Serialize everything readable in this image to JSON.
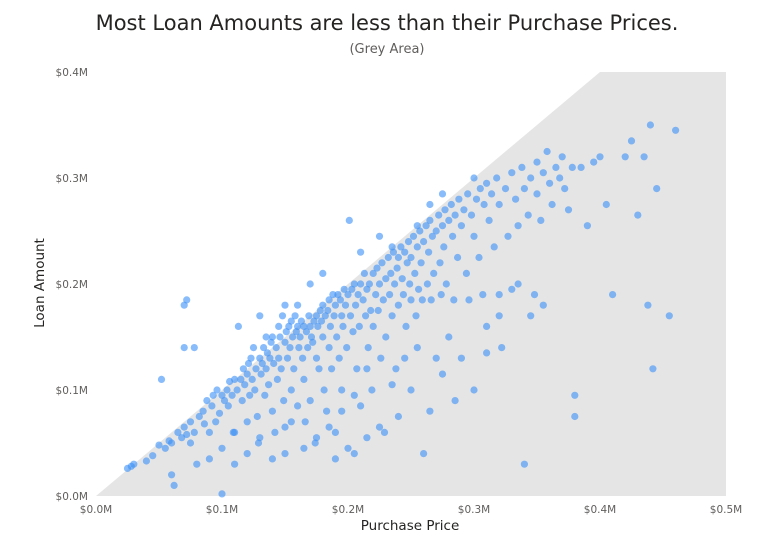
{
  "chart_data": {
    "type": "scatter",
    "title": "Most Loan Amounts are less than their Purchase Prices.",
    "subtitle": "(Grey Area)",
    "xlabel": "Purchase Price",
    "ylabel": "Loan Amount",
    "xlim": [
      0,
      0.5
    ],
    "ylim": [
      0,
      0.4
    ],
    "x_unit": "$M",
    "y_unit": "$M",
    "x_ticks": [
      "$0.0M",
      "$0.1M",
      "$0.2M",
      "$0.3M",
      "$0.4M",
      "$0.5M"
    ],
    "y_ticks": [
      "$0.0M",
      "$0.1M",
      "$0.2M",
      "$0.3M",
      "$0.4M"
    ],
    "x_tick_values": [
      0,
      0.1,
      0.2,
      0.3,
      0.4,
      0.5
    ],
    "y_tick_values": [
      0,
      0.1,
      0.2,
      0.3,
      0.4
    ],
    "grid": false,
    "legend": "none",
    "shaded_region": {
      "description_line": "y = x",
      "color": "#e5e5e5"
    },
    "point_color": "#3a8ff7",
    "points": [
      [
        0.025,
        0.026
      ],
      [
        0.028,
        0.028
      ],
      [
        0.03,
        0.03
      ],
      [
        0.04,
        0.033
      ],
      [
        0.045,
        0.038
      ],
      [
        0.05,
        0.048
      ],
      [
        0.052,
        0.11
      ],
      [
        0.055,
        0.045
      ],
      [
        0.058,
        0.052
      ],
      [
        0.06,
        0.05
      ],
      [
        0.06,
        0.02
      ],
      [
        0.062,
        0.01
      ],
      [
        0.065,
        0.06
      ],
      [
        0.068,
        0.055
      ],
      [
        0.07,
        0.065
      ],
      [
        0.07,
        0.14
      ],
      [
        0.072,
        0.058
      ],
      [
        0.075,
        0.07
      ],
      [
        0.075,
        0.05
      ],
      [
        0.078,
        0.06
      ],
      [
        0.07,
        0.18
      ],
      [
        0.072,
        0.185
      ],
      [
        0.078,
        0.14
      ],
      [
        0.08,
        0.03
      ],
      [
        0.082,
        0.075
      ],
      [
        0.085,
        0.08
      ],
      [
        0.086,
        0.068
      ],
      [
        0.088,
        0.09
      ],
      [
        0.09,
        0.06
      ],
      [
        0.09,
        0.035
      ],
      [
        0.092,
        0.085
      ],
      [
        0.093,
        0.095
      ],
      [
        0.095,
        0.07
      ],
      [
        0.096,
        0.1
      ],
      [
        0.098,
        0.078
      ],
      [
        0.1,
        0.002
      ],
      [
        0.1,
        0.045
      ],
      [
        0.1,
        0.095
      ],
      [
        0.102,
        0.09
      ],
      [
        0.104,
        0.1
      ],
      [
        0.105,
        0.085
      ],
      [
        0.106,
        0.108
      ],
      [
        0.108,
        0.095
      ],
      [
        0.109,
        0.06
      ],
      [
        0.11,
        0.11
      ],
      [
        0.11,
        0.03
      ],
      [
        0.112,
        0.1
      ],
      [
        0.113,
        0.16
      ],
      [
        0.115,
        0.11
      ],
      [
        0.116,
        0.09
      ],
      [
        0.117,
        0.12
      ],
      [
        0.118,
        0.105
      ],
      [
        0.12,
        0.115
      ],
      [
        0.12,
        0.07
      ],
      [
        0.121,
        0.125
      ],
      [
        0.122,
        0.095
      ],
      [
        0.123,
        0.13
      ],
      [
        0.124,
        0.11
      ],
      [
        0.125,
        0.14
      ],
      [
        0.126,
        0.1
      ],
      [
        0.127,
        0.12
      ],
      [
        0.128,
        0.075
      ],
      [
        0.129,
        0.05
      ],
      [
        0.13,
        0.13
      ],
      [
        0.13,
        0.17
      ],
      [
        0.131,
        0.115
      ],
      [
        0.132,
        0.125
      ],
      [
        0.133,
        0.14
      ],
      [
        0.134,
        0.095
      ],
      [
        0.135,
        0.12
      ],
      [
        0.135,
        0.15
      ],
      [
        0.136,
        0.135
      ],
      [
        0.137,
        0.105
      ],
      [
        0.138,
        0.13
      ],
      [
        0.139,
        0.145
      ],
      [
        0.14,
        0.15
      ],
      [
        0.14,
        0.08
      ],
      [
        0.141,
        0.125
      ],
      [
        0.142,
        0.06
      ],
      [
        0.143,
        0.14
      ],
      [
        0.144,
        0.11
      ],
      [
        0.145,
        0.16
      ],
      [
        0.145,
        0.13
      ],
      [
        0.146,
        0.15
      ],
      [
        0.147,
        0.12
      ],
      [
        0.148,
        0.17
      ],
      [
        0.149,
        0.09
      ],
      [
        0.15,
        0.145
      ],
      [
        0.15,
        0.04
      ],
      [
        0.151,
        0.155
      ],
      [
        0.152,
        0.13
      ],
      [
        0.153,
        0.16
      ],
      [
        0.154,
        0.14
      ],
      [
        0.155,
        0.165
      ],
      [
        0.155,
        0.1
      ],
      [
        0.156,
        0.15
      ],
      [
        0.157,
        0.12
      ],
      [
        0.158,
        0.17
      ],
      [
        0.159,
        0.155
      ],
      [
        0.16,
        0.16
      ],
      [
        0.16,
        0.085
      ],
      [
        0.161,
        0.14
      ],
      [
        0.162,
        0.15
      ],
      [
        0.163,
        0.165
      ],
      [
        0.164,
        0.13
      ],
      [
        0.165,
        0.16
      ],
      [
        0.165,
        0.11
      ],
      [
        0.166,
        0.07
      ],
      [
        0.167,
        0.155
      ],
      [
        0.168,
        0.14
      ],
      [
        0.169,
        0.17
      ],
      [
        0.17,
        0.16
      ],
      [
        0.17,
        0.09
      ],
      [
        0.171,
        0.15
      ],
      [
        0.172,
        0.145
      ],
      [
        0.173,
        0.165
      ],
      [
        0.174,
        0.05
      ],
      [
        0.175,
        0.17
      ],
      [
        0.175,
        0.13
      ],
      [
        0.176,
        0.16
      ],
      [
        0.177,
        0.12
      ],
      [
        0.178,
        0.175
      ],
      [
        0.179,
        0.165
      ],
      [
        0.18,
        0.18
      ],
      [
        0.18,
        0.15
      ],
      [
        0.181,
        0.1
      ],
      [
        0.182,
        0.17
      ],
      [
        0.183,
        0.08
      ],
      [
        0.184,
        0.175
      ],
      [
        0.185,
        0.185
      ],
      [
        0.185,
        0.14
      ],
      [
        0.186,
        0.16
      ],
      [
        0.187,
        0.12
      ],
      [
        0.188,
        0.19
      ],
      [
        0.189,
        0.17
      ],
      [
        0.19,
        0.18
      ],
      [
        0.19,
        0.06
      ],
      [
        0.191,
        0.15
      ],
      [
        0.192,
        0.19
      ],
      [
        0.193,
        0.13
      ],
      [
        0.194,
        0.185
      ],
      [
        0.195,
        0.17
      ],
      [
        0.195,
        0.1
      ],
      [
        0.196,
        0.16
      ],
      [
        0.197,
        0.195
      ],
      [
        0.198,
        0.18
      ],
      [
        0.199,
        0.14
      ],
      [
        0.2,
        0.19
      ],
      [
        0.2,
        0.045
      ],
      [
        0.201,
        0.26
      ],
      [
        0.202,
        0.17
      ],
      [
        0.203,
        0.195
      ],
      [
        0.204,
        0.155
      ],
      [
        0.205,
        0.2
      ],
      [
        0.206,
        0.18
      ],
      [
        0.207,
        0.12
      ],
      [
        0.208,
        0.19
      ],
      [
        0.209,
        0.16
      ],
      [
        0.21,
        0.2
      ],
      [
        0.21,
        0.085
      ],
      [
        0.212,
        0.185
      ],
      [
        0.213,
        0.21
      ],
      [
        0.214,
        0.17
      ],
      [
        0.215,
        0.195
      ],
      [
        0.216,
        0.14
      ],
      [
        0.217,
        0.2
      ],
      [
        0.218,
        0.175
      ],
      [
        0.219,
        0.1
      ],
      [
        0.22,
        0.21
      ],
      [
        0.22,
        0.16
      ],
      [
        0.222,
        0.19
      ],
      [
        0.223,
        0.215
      ],
      [
        0.224,
        0.175
      ],
      [
        0.225,
        0.2
      ],
      [
        0.226,
        0.13
      ],
      [
        0.227,
        0.22
      ],
      [
        0.228,
        0.185
      ],
      [
        0.229,
        0.06
      ],
      [
        0.23,
        0.205
      ],
      [
        0.23,
        0.15
      ],
      [
        0.232,
        0.225
      ],
      [
        0.233,
        0.19
      ],
      [
        0.234,
        0.21
      ],
      [
        0.235,
        0.17
      ],
      [
        0.236,
        0.23
      ],
      [
        0.237,
        0.2
      ],
      [
        0.238,
        0.12
      ],
      [
        0.239,
        0.215
      ],
      [
        0.24,
        0.225
      ],
      [
        0.24,
        0.18
      ],
      [
        0.242,
        0.235
      ],
      [
        0.243,
        0.205
      ],
      [
        0.244,
        0.19
      ],
      [
        0.245,
        0.23
      ],
      [
        0.246,
        0.16
      ],
      [
        0.247,
        0.22
      ],
      [
        0.248,
        0.24
      ],
      [
        0.249,
        0.2
      ],
      [
        0.25,
        0.185
      ],
      [
        0.25,
        0.225
      ],
      [
        0.252,
        0.245
      ],
      [
        0.253,
        0.21
      ],
      [
        0.254,
        0.17
      ],
      [
        0.255,
        0.235
      ],
      [
        0.256,
        0.195
      ],
      [
        0.257,
        0.25
      ],
      [
        0.258,
        0.22
      ],
      [
        0.259,
        0.185
      ],
      [
        0.26,
        0.24
      ],
      [
        0.26,
        0.04
      ],
      [
        0.262,
        0.255
      ],
      [
        0.263,
        0.2
      ],
      [
        0.264,
        0.23
      ],
      [
        0.265,
        0.26
      ],
      [
        0.266,
        0.185
      ],
      [
        0.267,
        0.245
      ],
      [
        0.268,
        0.21
      ],
      [
        0.27,
        0.25
      ],
      [
        0.27,
        0.13
      ],
      [
        0.272,
        0.265
      ],
      [
        0.273,
        0.22
      ],
      [
        0.274,
        0.19
      ],
      [
        0.275,
        0.255
      ],
      [
        0.276,
        0.235
      ],
      [
        0.277,
        0.27
      ],
      [
        0.278,
        0.2
      ],
      [
        0.28,
        0.26
      ],
      [
        0.28,
        0.15
      ],
      [
        0.282,
        0.275
      ],
      [
        0.283,
        0.245
      ],
      [
        0.284,
        0.185
      ],
      [
        0.285,
        0.265
      ],
      [
        0.287,
        0.225
      ],
      [
        0.288,
        0.28
      ],
      [
        0.29,
        0.255
      ],
      [
        0.29,
        0.13
      ],
      [
        0.292,
        0.27
      ],
      [
        0.294,
        0.21
      ],
      [
        0.295,
        0.285
      ],
      [
        0.296,
        0.185
      ],
      [
        0.298,
        0.265
      ],
      [
        0.3,
        0.3
      ],
      [
        0.3,
        0.245
      ],
      [
        0.302,
        0.28
      ],
      [
        0.304,
        0.225
      ],
      [
        0.305,
        0.29
      ],
      [
        0.307,
        0.19
      ],
      [
        0.308,
        0.275
      ],
      [
        0.31,
        0.295
      ],
      [
        0.31,
        0.16
      ],
      [
        0.312,
        0.26
      ],
      [
        0.314,
        0.285
      ],
      [
        0.316,
        0.235
      ],
      [
        0.318,
        0.3
      ],
      [
        0.32,
        0.275
      ],
      [
        0.32,
        0.19
      ],
      [
        0.322,
        0.14
      ],
      [
        0.325,
        0.29
      ],
      [
        0.327,
        0.245
      ],
      [
        0.33,
        0.305
      ],
      [
        0.33,
        0.195
      ],
      [
        0.333,
        0.28
      ],
      [
        0.335,
        0.255
      ],
      [
        0.338,
        0.31
      ],
      [
        0.34,
        0.29
      ],
      [
        0.34,
        0.03
      ],
      [
        0.343,
        0.265
      ],
      [
        0.345,
        0.3
      ],
      [
        0.348,
        0.19
      ],
      [
        0.35,
        0.315
      ],
      [
        0.35,
        0.285
      ],
      [
        0.353,
        0.26
      ],
      [
        0.355,
        0.305
      ],
      [
        0.358,
        0.325
      ],
      [
        0.36,
        0.295
      ],
      [
        0.362,
        0.275
      ],
      [
        0.365,
        0.31
      ],
      [
        0.368,
        0.3
      ],
      [
        0.37,
        0.32
      ],
      [
        0.372,
        0.29
      ],
      [
        0.375,
        0.27
      ],
      [
        0.378,
        0.31
      ],
      [
        0.38,
        0.095
      ],
      [
        0.38,
        0.075
      ],
      [
        0.385,
        0.31
      ],
      [
        0.39,
        0.255
      ],
      [
        0.395,
        0.315
      ],
      [
        0.4,
        0.32
      ],
      [
        0.405,
        0.275
      ],
      [
        0.41,
        0.19
      ],
      [
        0.42,
        0.32
      ],
      [
        0.425,
        0.335
      ],
      [
        0.43,
        0.265
      ],
      [
        0.435,
        0.32
      ],
      [
        0.438,
        0.18
      ],
      [
        0.44,
        0.35
      ],
      [
        0.442,
        0.12
      ],
      [
        0.445,
        0.29
      ],
      [
        0.455,
        0.17
      ],
      [
        0.46,
        0.345
      ],
      [
        0.12,
        0.04
      ],
      [
        0.14,
        0.035
      ],
      [
        0.15,
        0.065
      ],
      [
        0.165,
        0.045
      ],
      [
        0.175,
        0.055
      ],
      [
        0.19,
        0.035
      ],
      [
        0.205,
        0.04
      ],
      [
        0.215,
        0.055
      ],
      [
        0.225,
        0.065
      ],
      [
        0.24,
        0.075
      ],
      [
        0.25,
        0.1
      ],
      [
        0.265,
        0.08
      ],
      [
        0.275,
        0.115
      ],
      [
        0.285,
        0.09
      ],
      [
        0.3,
        0.1
      ],
      [
        0.31,
        0.135
      ],
      [
        0.32,
        0.17
      ],
      [
        0.335,
        0.2
      ],
      [
        0.345,
        0.17
      ],
      [
        0.355,
        0.18
      ],
      [
        0.15,
        0.18
      ],
      [
        0.16,
        0.18
      ],
      [
        0.17,
        0.2
      ],
      [
        0.18,
        0.21
      ],
      [
        0.21,
        0.23
      ],
      [
        0.225,
        0.245
      ],
      [
        0.235,
        0.235
      ],
      [
        0.255,
        0.255
      ],
      [
        0.265,
        0.275
      ],
      [
        0.275,
        0.285
      ],
      [
        0.11,
        0.06
      ],
      [
        0.13,
        0.055
      ],
      [
        0.155,
        0.07
      ],
      [
        0.185,
        0.065
      ],
      [
        0.195,
        0.08
      ],
      [
        0.205,
        0.095
      ],
      [
        0.215,
        0.12
      ],
      [
        0.235,
        0.105
      ],
      [
        0.245,
        0.13
      ],
      [
        0.255,
        0.14
      ]
    ]
  }
}
